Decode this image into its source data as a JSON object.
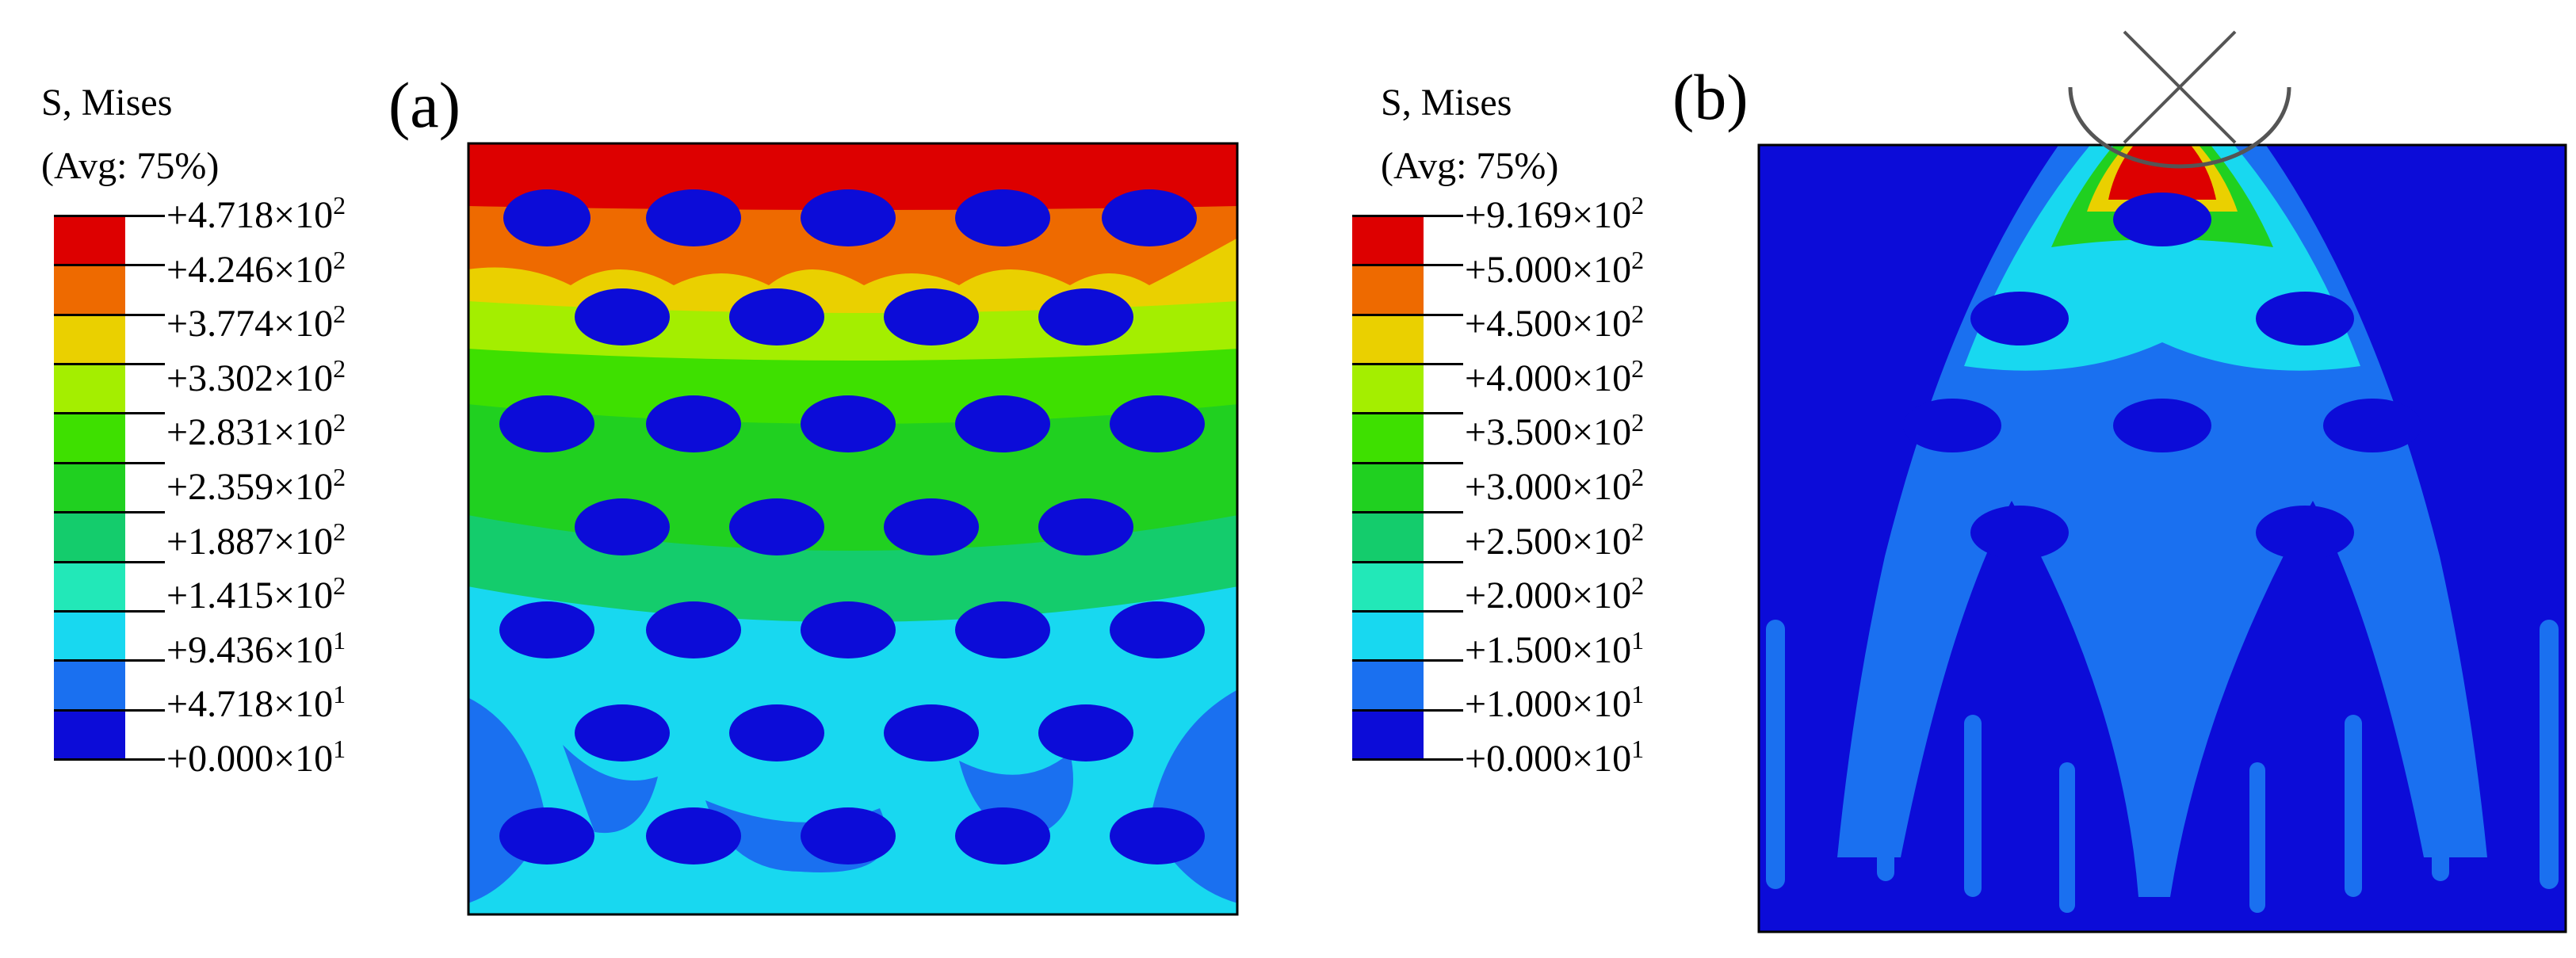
{
  "panel_a": {
    "label": "(a)",
    "legend": {
      "title_line1": "S, Mises",
      "title_line2": "(Avg: 75%)",
      "ticks": [
        {
          "mant": "+4.718",
          "exp": "2"
        },
        {
          "mant": "+4.246",
          "exp": "2"
        },
        {
          "mant": "+3.774",
          "exp": "2"
        },
        {
          "mant": "+3.302",
          "exp": "2"
        },
        {
          "mant": "+2.831",
          "exp": "2"
        },
        {
          "mant": "+2.359",
          "exp": "2"
        },
        {
          "mant": "+1.887",
          "exp": "2"
        },
        {
          "mant": "+1.415",
          "exp": "2"
        },
        {
          "mant": "+9.436",
          "exp": "1"
        },
        {
          "mant": "+4.718",
          "exp": "1"
        },
        {
          "mant": "+0.000",
          "exp": "1"
        }
      ]
    }
  },
  "panel_b": {
    "label": "(b)",
    "legend": {
      "title_line1": "S, Mises",
      "title_line2": "(Avg: 75%)",
      "ticks": [
        {
          "mant": "+9.169",
          "exp": "2"
        },
        {
          "mant": "+5.000",
          "exp": "2"
        },
        {
          "mant": "+4.500",
          "exp": "2"
        },
        {
          "mant": "+4.000",
          "exp": "2"
        },
        {
          "mant": "+3.500",
          "exp": "2"
        },
        {
          "mant": "+3.000",
          "exp": "2"
        },
        {
          "mant": "+2.500",
          "exp": "2"
        },
        {
          "mant": "+2.000",
          "exp": "2"
        },
        {
          "mant": "+1.500",
          "exp": "1"
        },
        {
          "mant": "+1.000",
          "exp": "1"
        },
        {
          "mant": "+0.000",
          "exp": "1"
        }
      ]
    }
  },
  "times_symbol": "×10",
  "colormap": [
    "#dd0000",
    "#ee6a00",
    "#ead000",
    "#a4ee00",
    "#3ee000",
    "#20d020",
    "#14cc6c",
    "#22e8b8",
    "#18d8f0",
    "#1a70f0",
    "#0c0cd8"
  ]
}
